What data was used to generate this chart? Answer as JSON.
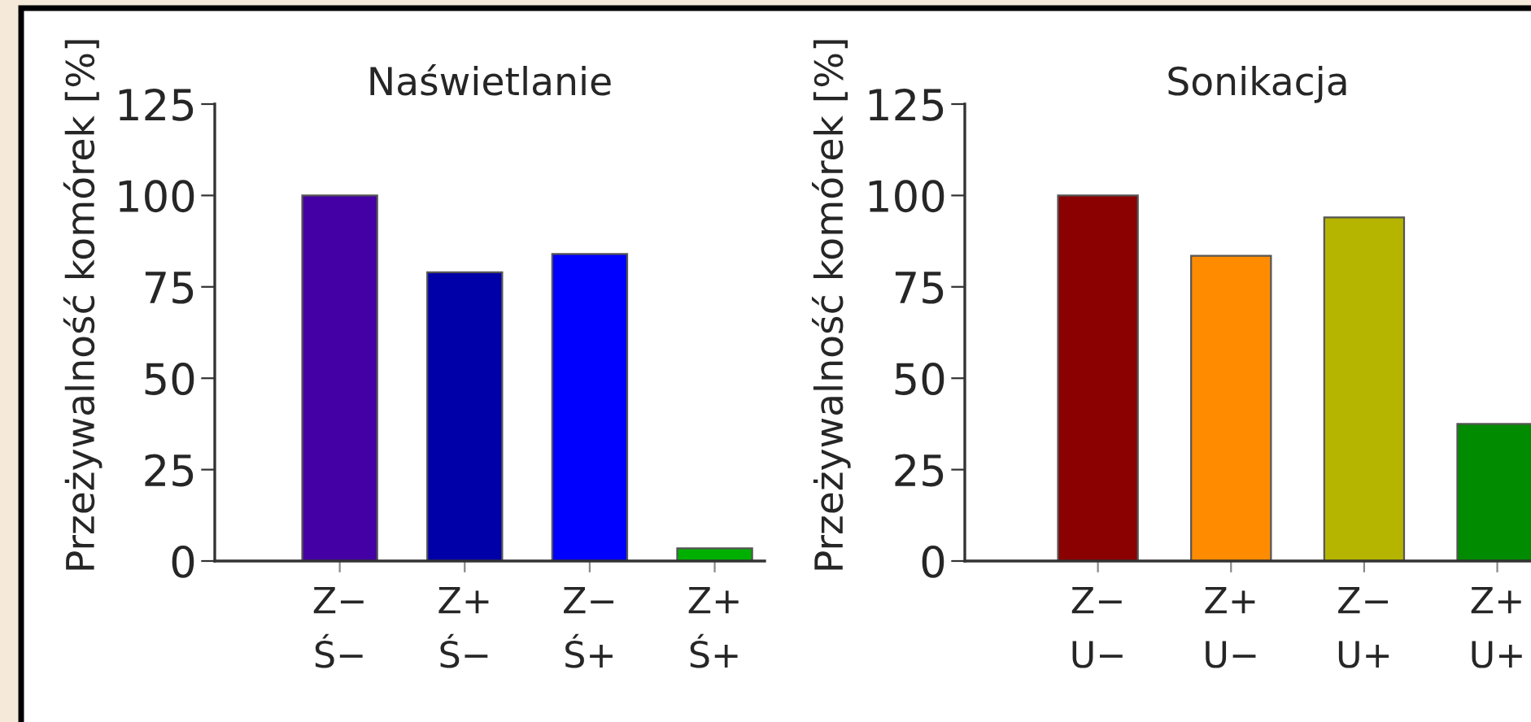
{
  "chart_data": [
    {
      "type": "bar",
      "title": "Naświetlanie",
      "ylabel": "Przeżywalność komórek [%]",
      "categories": [
        "Z−\nŚ−",
        "Z+\nŚ−",
        "Z−\nŚ+",
        "Z+\nŚ+"
      ],
      "values": [
        100,
        79,
        84,
        3.5
      ],
      "colors": [
        "#4400a4",
        "#0000a8",
        "#0000ff",
        "#00b000"
      ],
      "ylim": [
        0,
        125
      ],
      "yticks": [
        0,
        25,
        50,
        75,
        100,
        125
      ],
      "grid": false,
      "legend": false
    },
    {
      "type": "bar",
      "title": "Sonikacja",
      "ylabel": "Przeżywalność komórek [%]",
      "categories": [
        "Z−\nU−",
        "Z+\nU−",
        "Z−\nU+",
        "Z+\nU+"
      ],
      "values": [
        100,
        83.5,
        94,
        37.5
      ],
      "colors": [
        "#8b0000",
        "#ff8c00",
        "#b5b500",
        "#008b00"
      ],
      "ylim": [
        0,
        125
      ],
      "yticks": [
        0,
        25,
        50,
        75,
        100,
        125
      ],
      "grid": false,
      "legend": false
    }
  ]
}
